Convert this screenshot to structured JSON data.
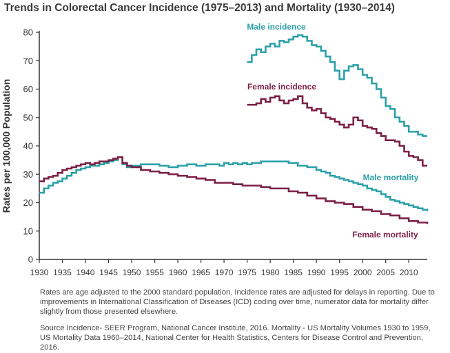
{
  "chart_data": {
    "type": "line",
    "title": "Trends in Colorectal Cancer Incidence (1975–2013) and Mortality (1930–2014)",
    "ylabel": "Rates per 100,000 Population",
    "xlabel": "",
    "xlim": [
      1930,
      2014
    ],
    "ylim": [
      0,
      80
    ],
    "x_ticks": [
      "1930",
      "1935",
      "1940",
      "1945",
      "1950",
      "1955",
      "1960",
      "1965",
      "1970",
      "1975",
      "1980",
      "1985",
      "1990",
      "1995",
      "2000",
      "2005",
      "2010"
    ],
    "y_ticks": [
      "0",
      "10",
      "20",
      "30",
      "40",
      "50",
      "60",
      "70",
      "80"
    ],
    "grid": false,
    "legend": "inline labels",
    "series": [
      {
        "name": "Male incidence",
        "color": "#2aa0a8",
        "x": [
          1975,
          1976,
          1977,
          1978,
          1979,
          1980,
          1981,
          1982,
          1983,
          1984,
          1985,
          1986,
          1987,
          1988,
          1989,
          1990,
          1991,
          1992,
          1993,
          1994,
          1995,
          1996,
          1997,
          1998,
          1999,
          2000,
          2001,
          2002,
          2003,
          2004,
          2005,
          2006,
          2007,
          2008,
          2009,
          2010,
          2011,
          2012,
          2013
        ],
        "y": [
          69.5,
          72,
          74,
          73,
          75,
          76,
          75,
          77,
          76.5,
          77.5,
          78.5,
          79,
          78.5,
          77,
          75.5,
          75,
          73.5,
          71.5,
          69.5,
          66.5,
          63.5,
          66.5,
          68,
          68.5,
          67,
          65,
          64,
          62,
          60,
          57,
          54,
          53,
          50,
          48.5,
          47,
          45,
          45,
          44,
          43.5
        ]
      },
      {
        "name": "Female incidence",
        "color": "#7b1f45",
        "x": [
          1975,
          1976,
          1977,
          1978,
          1979,
          1980,
          1981,
          1982,
          1983,
          1984,
          1985,
          1986,
          1987,
          1988,
          1989,
          1990,
          1991,
          1992,
          1993,
          1994,
          1995,
          1996,
          1997,
          1998,
          1999,
          2000,
          2001,
          2002,
          2003,
          2004,
          2005,
          2006,
          2007,
          2008,
          2009,
          2010,
          2011,
          2012,
          2013
        ],
        "y": [
          54.5,
          54.5,
          55,
          56.5,
          55.5,
          57,
          57.5,
          56,
          55,
          56,
          56.5,
          57.5,
          55,
          53.5,
          52.5,
          53,
          51.5,
          50,
          49.5,
          48.5,
          47.5,
          46.5,
          47.5,
          50,
          49,
          47,
          46.5,
          46,
          44.5,
          43.5,
          42,
          42,
          41.5,
          40,
          38,
          36.5,
          36,
          35,
          33
        ]
      },
      {
        "name": "Male mortality",
        "color": "#2aa0a8",
        "x": [
          1930,
          1931,
          1932,
          1933,
          1934,
          1935,
          1936,
          1937,
          1938,
          1939,
          1940,
          1941,
          1942,
          1943,
          1944,
          1945,
          1946,
          1947,
          1948,
          1949,
          1950,
          1952,
          1954,
          1956,
          1958,
          1960,
          1962,
          1964,
          1966,
          1968,
          1969,
          1970,
          1971,
          1972,
          1973,
          1974,
          1975,
          1976,
          1977,
          1978,
          1980,
          1982,
          1984,
          1986,
          1988,
          1990,
          1991,
          1992,
          1993,
          1994,
          1995,
          1996,
          1997,
          1998,
          1999,
          2000,
          2001,
          2002,
          2003,
          2004,
          2005,
          2006,
          2007,
          2008,
          2009,
          2010,
          2011,
          2012,
          2013,
          2014
        ],
        "y": [
          23.5,
          25,
          26,
          27,
          27.5,
          28.5,
          29.5,
          30.5,
          31.5,
          32,
          32.5,
          33,
          33,
          33.5,
          34,
          34.5,
          35,
          36,
          33.5,
          32.5,
          33,
          33.5,
          33.5,
          33,
          32.5,
          33,
          33.5,
          33,
          33.5,
          33.5,
          33,
          34,
          33.5,
          34,
          33.5,
          34,
          33.5,
          34,
          34,
          34.5,
          34.5,
          34.5,
          34,
          33,
          32.5,
          31.5,
          31,
          30.5,
          29.5,
          29,
          28.5,
          28,
          27.5,
          27,
          26.5,
          26,
          25,
          24.5,
          24,
          23,
          22,
          21,
          20.5,
          20,
          19.5,
          19,
          18.5,
          18,
          17.5,
          17
        ]
      },
      {
        "name": "Female mortality",
        "color": "#7b1f45",
        "x": [
          1930,
          1931,
          1932,
          1933,
          1934,
          1935,
          1936,
          1937,
          1938,
          1939,
          1940,
          1941,
          1942,
          1943,
          1944,
          1945,
          1946,
          1947,
          1948,
          1949,
          1950,
          1952,
          1954,
          1956,
          1958,
          1960,
          1962,
          1964,
          1966,
          1968,
          1970,
          1972,
          1974,
          1976,
          1978,
          1980,
          1982,
          1984,
          1986,
          1988,
          1990,
          1992,
          1994,
          1996,
          1998,
          2000,
          2002,
          2004,
          2006,
          2008,
          2010,
          2012,
          2014
        ],
        "y": [
          27.5,
          28.5,
          29,
          29.5,
          30.5,
          31.5,
          32,
          32.5,
          33,
          33.5,
          34,
          33.5,
          34,
          34.5,
          34.5,
          35,
          35.5,
          36,
          34,
          33,
          32.5,
          31.5,
          31,
          30.5,
          30,
          29.5,
          29,
          28.5,
          28,
          27,
          27,
          26.5,
          26,
          26,
          25.5,
          25,
          25,
          24,
          23.5,
          22.5,
          21.5,
          20.5,
          20,
          19.5,
          18.5,
          17.5,
          17,
          16,
          15.5,
          14.5,
          13.5,
          13,
          12.5
        ]
      }
    ]
  },
  "notes": {
    "line1": "Rates are age adjusted to the 2000 standard population. Incidence rates are adjusted for delays in reporting. Due to improvements in International Classification of Diseases (ICD) coding over time, numerator data for mortality differ slightly from those presented elsewhere.",
    "line2": "Source Incidence- SEER Program, National Cancer Institute, 2016. Mortality - US Mortality Volumes 1930 to 1959, US Mortality Data 1960–2014, National Center for Health Statistics, Centers for Disease Control and Prevention, 2016."
  }
}
